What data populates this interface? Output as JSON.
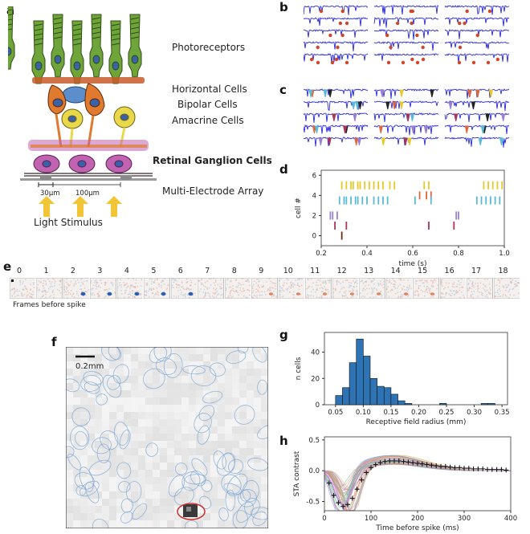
{
  "panels": {
    "a": "a",
    "b": "b",
    "c": "c",
    "d": "d",
    "e": "e",
    "f": "f",
    "g": "g",
    "h": "h"
  },
  "panel_a": {
    "layers": [
      "Photoreceptors",
      "Horizontal Cells",
      "Bipolar Cells",
      "Amacrine Cells",
      "Retinal Ganglion Cells",
      "Multi-Electrode Array"
    ],
    "scale_30": "30μm",
    "scale_100": "100μm",
    "stimulus": "Light Stimulus",
    "colors": {
      "photoreceptor": "#6fa43a",
      "horizontal": "#5b8ecb",
      "bipolar": "#e07a2e",
      "amacrine": "#e8d84a",
      "ganglion": "#c063b0",
      "arrow": "#f2c537"
    }
  },
  "panel_e": {
    "frame_numbers": [
      "0",
      "1",
      "2",
      "3",
      "4",
      "5",
      "6",
      "7",
      "8",
      "9",
      "10",
      "11",
      "12",
      "13",
      "14",
      "15",
      "16",
      "17",
      "18"
    ],
    "caption": "Frames before spike"
  },
  "panel_f": {
    "scale_label": "0.2mm"
  },
  "chart_data": [
    {
      "id": "d",
      "type": "scatter",
      "xlabel": "time (s)",
      "ylabel": "cell #",
      "xlim": [
        0.2,
        1.0
      ],
      "ylim": [
        -1,
        6.5
      ],
      "xticks": [
        "0.2",
        "0.4",
        "0.6",
        "0.8",
        "1.0"
      ],
      "yticks": [
        "0",
        "2",
        "4",
        "6"
      ],
      "series": [
        {
          "cell": 5,
          "color": "#e8c92a",
          "times": [
            0.29,
            0.31,
            0.33,
            0.34,
            0.36,
            0.37,
            0.39,
            0.41,
            0.43,
            0.45,
            0.47,
            0.5,
            0.52,
            0.65,
            0.67,
            0.91,
            0.93,
            0.95,
            0.97,
            0.99
          ]
        },
        {
          "cell": 4,
          "color": "#e0663c",
          "times": [
            0.63,
            0.66,
            0.68
          ]
        },
        {
          "cell": 3.5,
          "color": "#5ab9d6",
          "times": [
            0.28,
            0.3,
            0.31,
            0.33,
            0.35,
            0.36,
            0.38,
            0.4,
            0.43,
            0.45,
            0.47,
            0.49,
            0.61,
            0.68,
            0.88,
            0.9,
            0.92,
            0.94,
            0.96,
            0.98
          ]
        },
        {
          "cell": 2,
          "color": "#9b7fd1",
          "times": [
            0.24,
            0.25,
            0.27,
            0.79,
            0.8
          ]
        },
        {
          "cell": 1,
          "color": "#a8355c",
          "times": [
            0.26,
            0.31,
            0.67,
            0.78
          ]
        },
        {
          "cell": 0,
          "color": "#6b2a1e",
          "times": [
            0.29
          ]
        }
      ]
    },
    {
      "id": "g",
      "type": "bar",
      "xlabel": "Receptive field radius (mm)",
      "ylabel": "n cells",
      "xlim": [
        0.03,
        0.36
      ],
      "ylim": [
        0,
        55
      ],
      "xticks": [
        "0.05",
        "0.10",
        "0.15",
        "0.20",
        "0.25",
        "0.30",
        "0.35"
      ],
      "yticks": [
        "0",
        "20",
        "40"
      ],
      "bin_width": 0.0125,
      "bin_starts": [
        0.05,
        0.0625,
        0.075,
        0.0875,
        0.1,
        0.1125,
        0.125,
        0.1375,
        0.15,
        0.1625,
        0.175,
        0.1875,
        0.2375,
        0.3125,
        0.325
      ],
      "values": [
        7,
        13,
        32,
        50,
        37,
        20,
        14,
        13,
        8,
        3,
        1,
        0,
        1,
        1,
        1
      ],
      "color": "#2e74b5"
    },
    {
      "id": "h",
      "type": "line",
      "xlabel": "Time before spike (ms)",
      "ylabel": "STA contrast",
      "xlim": [
        0,
        400
      ],
      "ylim": [
        -0.65,
        0.55
      ],
      "xticks": [
        "0",
        "100",
        "200",
        "300",
        "400"
      ],
      "yticks": [
        "-0.5",
        "0.0",
        "0.5"
      ],
      "mean_x": [
        10,
        20,
        30,
        40,
        50,
        60,
        70,
        80,
        90,
        100,
        110,
        120,
        130,
        140,
        150,
        160,
        170,
        180,
        190,
        200,
        210,
        220,
        230,
        240,
        250,
        260,
        270,
        280,
        290,
        300,
        310,
        320,
        330,
        340,
        350,
        360,
        370,
        380,
        390
      ],
      "mean_y": [
        -0.2,
        -0.4,
        -0.52,
        -0.58,
        -0.55,
        -0.45,
        -0.3,
        -0.15,
        -0.03,
        0.05,
        0.1,
        0.13,
        0.15,
        0.16,
        0.16,
        0.16,
        0.15,
        0.14,
        0.13,
        0.12,
        0.11,
        0.1,
        0.09,
        0.08,
        0.07,
        0.07,
        0.06,
        0.05,
        0.05,
        0.04,
        0.04,
        0.03,
        0.03,
        0.03,
        0.02,
        0.02,
        0.02,
        0.02,
        0.01
      ],
      "trace_colors": [
        "#e07a7a",
        "#7ab97a",
        "#7a9ee0",
        "#e0b07a",
        "#b07ae0",
        "#7ae0d6",
        "#e07ac2",
        "#c2c27a",
        "#9e9e9e",
        "#e09a7a"
      ]
    }
  ]
}
